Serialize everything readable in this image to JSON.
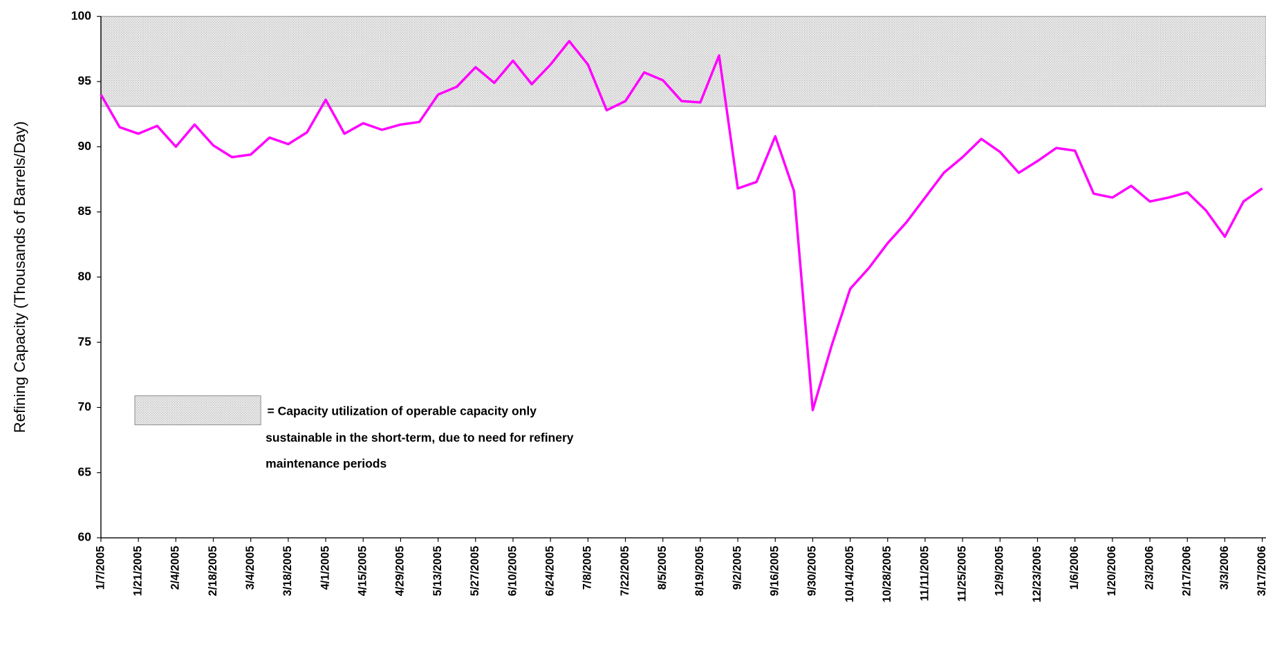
{
  "chart_data": {
    "type": "line",
    "y_label": "Refining Capacity (Thousands of Barrels/Day)",
    "categories": [
      "1/7/2005",
      null,
      "1/21/2005",
      null,
      "2/4/2005",
      null,
      "2/18/2005",
      null,
      "3/4/2005",
      null,
      "3/18/2005",
      null,
      "4/1/2005",
      null,
      "4/15/2005",
      null,
      "4/29/2005",
      null,
      "5/13/2005",
      null,
      "5/27/2005",
      null,
      "6/10/2005",
      null,
      "6/24/2005",
      null,
      "7/8/2005",
      null,
      "7/22/2005",
      null,
      "8/5/2005",
      null,
      "8/19/2005",
      null,
      "9/2/2005",
      null,
      "9/16/2005",
      null,
      "9/30/2005",
      null,
      "10/14/2005",
      null,
      "10/28/2005",
      null,
      "11/11/2005",
      null,
      "11/25/2005",
      null,
      "12/9/2005",
      null,
      "12/23/2005",
      null,
      "1/6/2006",
      null,
      "1/20/2006",
      null,
      "2/3/2006",
      null,
      "2/17/2006",
      null,
      "3/3/2006",
      null,
      "3/17/2006"
    ],
    "series": [
      {
        "name": null,
        "color": "#ff00ff",
        "values": [
          94.0,
          91.5,
          91.0,
          91.6,
          90.0,
          91.7,
          90.1,
          89.2,
          89.4,
          90.7,
          90.2,
          91.1,
          93.6,
          91.0,
          91.8,
          91.3,
          91.7,
          91.9,
          94.0,
          94.6,
          96.1,
          94.9,
          96.6,
          94.8,
          96.3,
          98.1,
          96.3,
          92.8,
          93.5,
          95.7,
          95.1,
          93.5,
          93.4,
          97.0,
          86.8,
          87.3,
          90.8,
          86.6,
          69.8,
          74.7,
          79.1,
          80.7,
          82.6,
          84.2,
          86.1,
          88.0,
          89.2,
          90.6,
          89.6,
          88.0,
          88.9,
          89.9,
          89.7,
          86.4,
          86.1,
          87.0,
          85.8,
          86.1,
          86.5,
          85.1,
          83.1,
          85.8,
          86.8
        ]
      }
    ],
    "ylim": [
      60,
      100
    ],
    "yticks": [
      60,
      65,
      70,
      75,
      80,
      85,
      90,
      95,
      100
    ],
    "shaded_range": [
      93.1,
      100
    ],
    "shaded_color": "#d9d9d9",
    "annotation": [
      "= Capacity utilization of operable capacity only",
      "sustainable in the short-term, due to need for refinery",
      "maintenance periods"
    ]
  }
}
